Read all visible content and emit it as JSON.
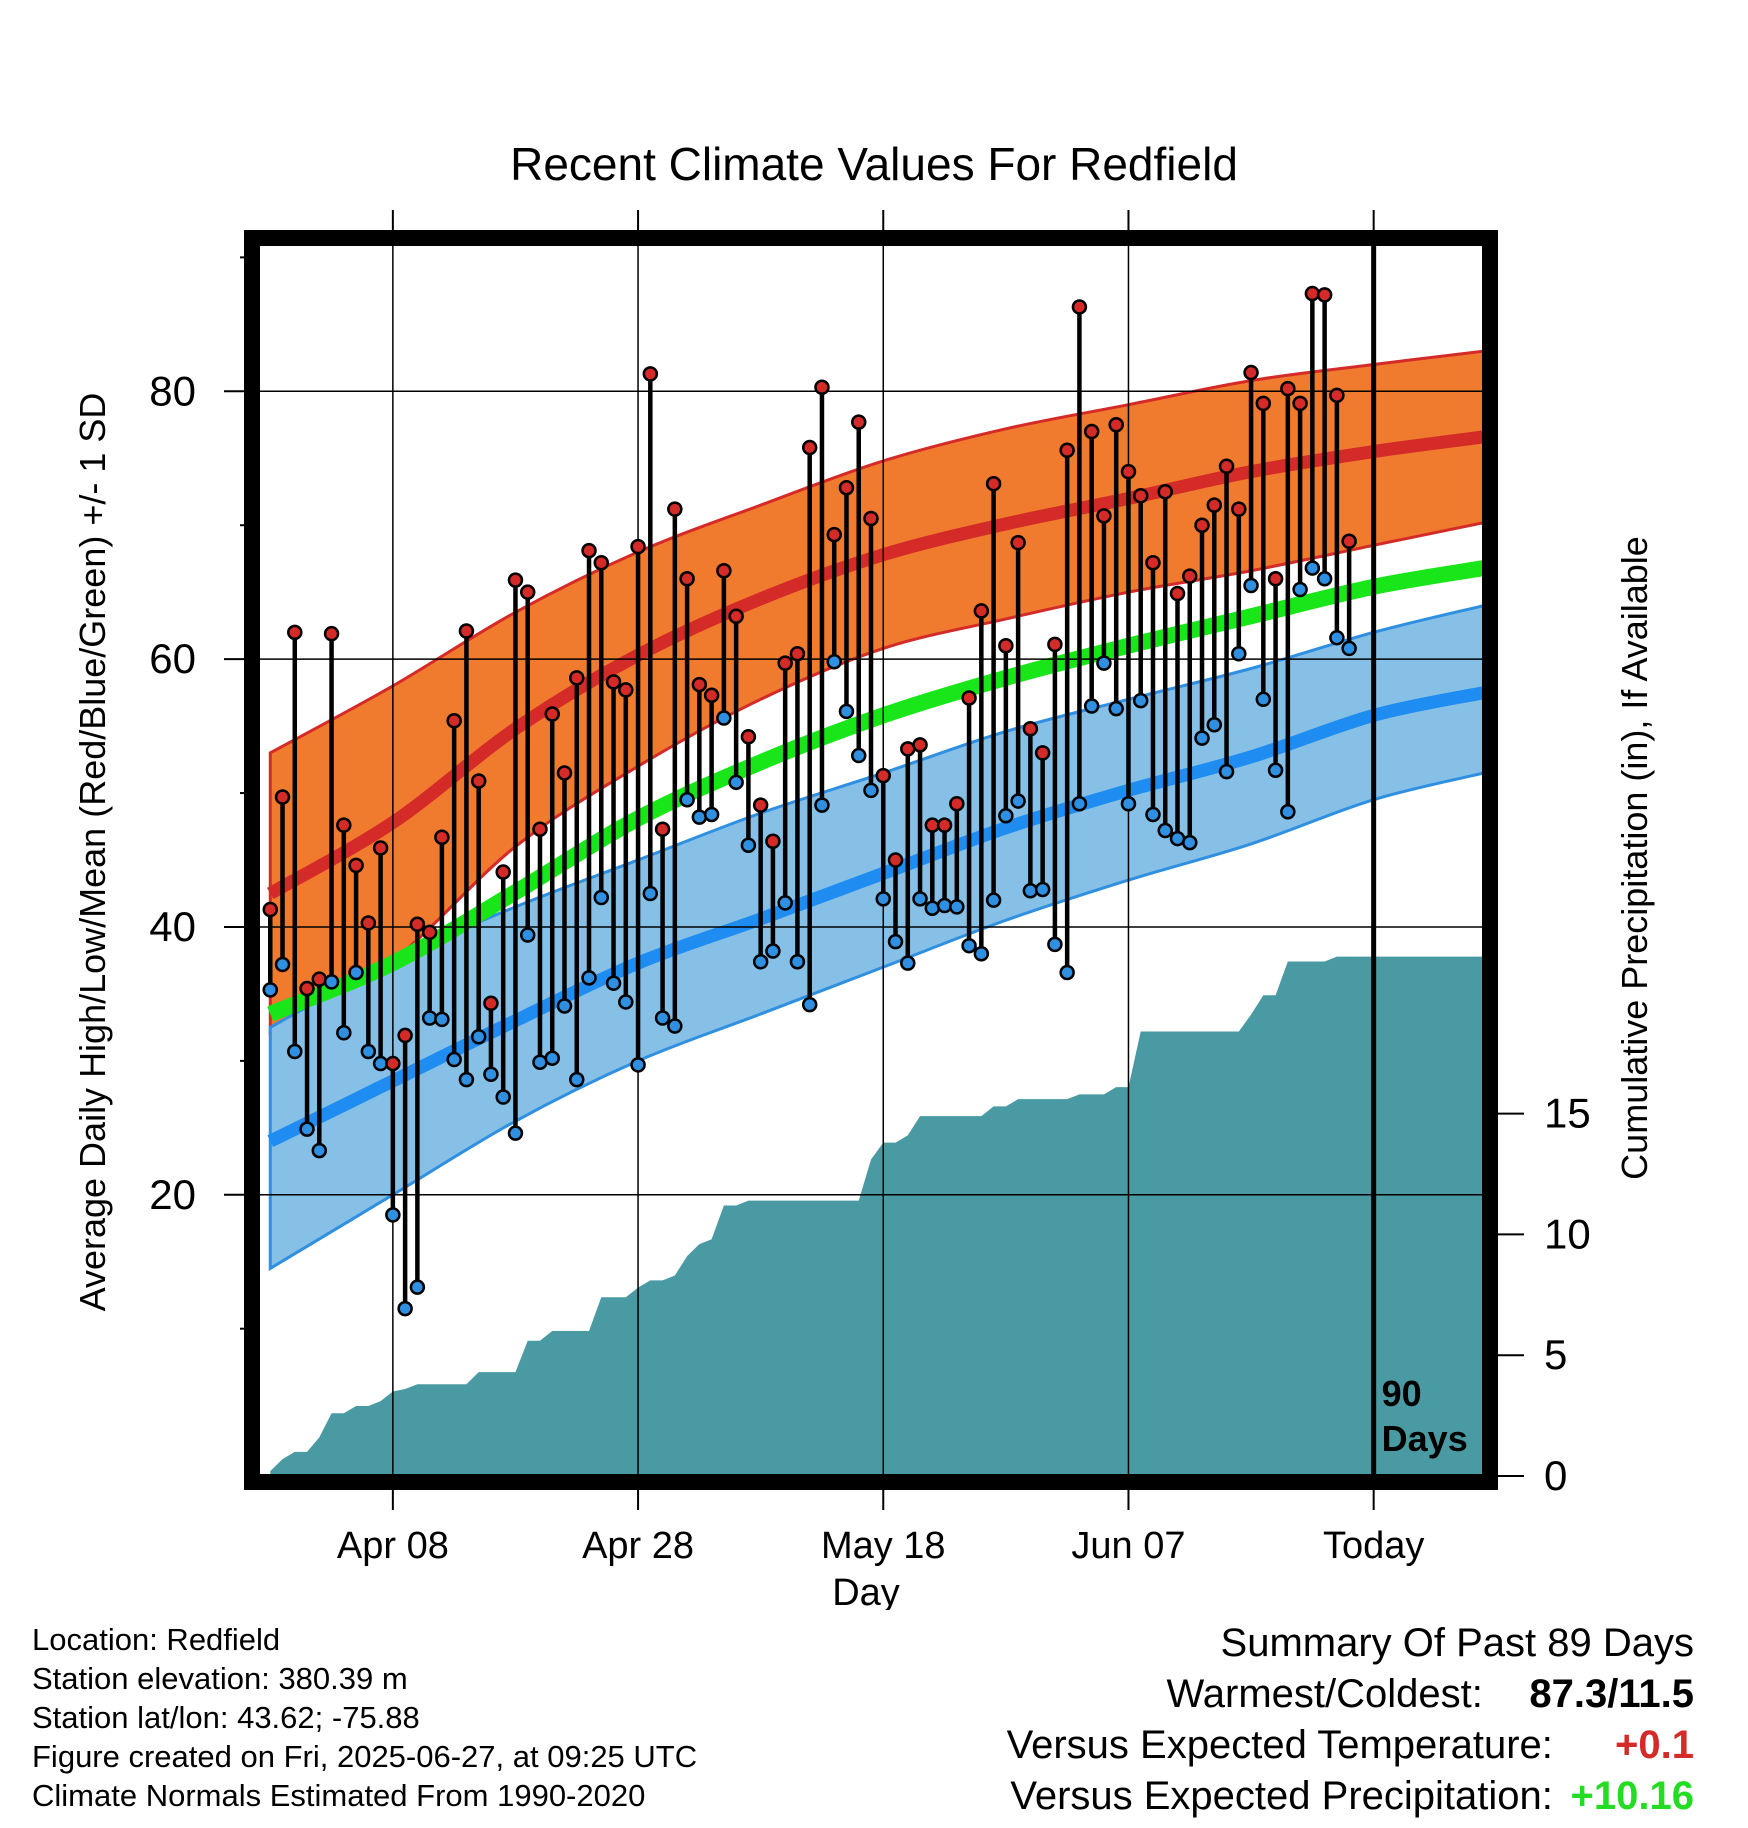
{
  "chart_data": {
    "type": "line",
    "title": "Recent Climate Values For Redfield",
    "xlabel": "Day",
    "ylabel": "Average Daily High/Low/Mean (Red/Blue/Green) +/- 1 SD",
    "y2label": "Cumulative Precipitation (in), If Available",
    "xlim": [
      -11,
      89
    ],
    "ylim": [
      -1,
      91
    ],
    "y2lim": [
      0,
      51
    ],
    "x_ticks": [
      {
        "day": 0,
        "label": "Apr 08"
      },
      {
        "day": 20,
        "label": "Apr 28"
      },
      {
        "day": 40,
        "label": "May 18"
      },
      {
        "day": 60,
        "label": "Jun 07"
      },
      {
        "day": 80,
        "label": "Today"
      }
    ],
    "y_ticks": [
      20,
      40,
      60,
      80
    ],
    "y2_ticks": [
      0,
      5,
      10,
      15
    ],
    "today_marker": {
      "day": 80,
      "label_line1": "90",
      "label_line2": "Days"
    },
    "grid": true,
    "normals": {
      "x": [
        -10,
        0,
        10,
        20,
        30,
        40,
        50,
        60,
        70,
        80,
        89
      ],
      "high_mean": [
        42.5,
        47.8,
        54.8,
        60.3,
        64.5,
        67.8,
        70.1,
        72.0,
        74.0,
        75.5,
        76.6
      ],
      "high_upper": [
        53.0,
        58.0,
        63.5,
        68.0,
        71.5,
        74.8,
        77.2,
        79.0,
        80.8,
        82.0,
        83.0
      ],
      "high_lower": [
        32.0,
        37.5,
        46.0,
        52.0,
        57.0,
        60.8,
        63.0,
        65.0,
        66.6,
        68.5,
        70.2
      ],
      "low_mean": [
        24.0,
        28.5,
        33.0,
        37.3,
        40.6,
        44.0,
        47.4,
        50.2,
        52.7,
        55.8,
        57.5
      ],
      "low_upper": [
        32.5,
        37.5,
        41.5,
        45.0,
        48.5,
        51.5,
        54.6,
        57.0,
        59.3,
        62.0,
        64.0
      ],
      "low_lower": [
        14.5,
        20.0,
        25.5,
        30.0,
        33.5,
        37.0,
        40.5,
        43.5,
        46.2,
        49.5,
        51.5
      ],
      "mean": [
        33.5,
        37.3,
        42.6,
        48.1,
        52.3,
        55.8,
        58.6,
        61.0,
        63.2,
        65.4,
        66.8
      ]
    },
    "series": [
      {
        "name": "High",
        "color": "#d42a28",
        "x": [
          -10,
          -9,
          -8,
          -7,
          -6,
          -5,
          -4,
          -3,
          -2,
          -1,
          0,
          1,
          2,
          3,
          4,
          5,
          6,
          7,
          8,
          9,
          10,
          11,
          12,
          13,
          14,
          15,
          16,
          17,
          18,
          19,
          20,
          21,
          22,
          23,
          24,
          25,
          26,
          27,
          28,
          29,
          30,
          31,
          32,
          33,
          34,
          35,
          36,
          37,
          38,
          39,
          40,
          41,
          42,
          43,
          44,
          45,
          46,
          47,
          48,
          49,
          50,
          51,
          52,
          53,
          54,
          55,
          56,
          57,
          58,
          59,
          60,
          61,
          62,
          63,
          64,
          65,
          66,
          67,
          68,
          69,
          70,
          71,
          72,
          73,
          74,
          75,
          76,
          77,
          78,
          79
        ],
        "values": [
          41.3,
          49.7,
          62.0,
          35.4,
          36.1,
          61.9,
          47.6,
          44.6,
          40.3,
          45.9,
          29.8,
          31.9,
          40.2,
          39.6,
          46.7,
          55.4,
          62.1,
          50.9,
          34.3,
          44.1,
          65.9,
          65.0,
          47.3,
          55.9,
          51.5,
          58.6,
          68.1,
          67.2,
          58.3,
          57.7,
          68.4,
          81.3,
          47.3,
          71.2,
          66.0,
          58.1,
          57.3,
          66.6,
          63.2,
          54.2,
          49.1,
          46.4,
          59.7,
          60.4,
          75.8,
          80.3,
          69.3,
          72.8,
          77.7,
          70.5,
          51.3,
          45.0,
          53.3,
          53.6,
          47.6,
          47.6,
          49.2,
          57.1,
          63.6,
          73.1,
          61.0,
          68.7,
          54.8,
          53.0,
          61.1,
          75.6,
          86.3,
          77.0,
          70.7,
          77.5,
          74.0,
          72.2,
          67.2,
          72.5,
          64.9,
          66.2,
          70.0,
          71.5,
          74.4,
          71.2,
          81.4,
          79.1,
          66.0,
          80.2,
          79.1,
          87.3,
          87.2,
          79.7,
          68.8,
          null
        ]
      },
      {
        "name": "Low",
        "color": "#2f8fe0",
        "x": [
          -10,
          -9,
          -8,
          -7,
          -6,
          -5,
          -4,
          -3,
          -2,
          -1,
          0,
          1,
          2,
          3,
          4,
          5,
          6,
          7,
          8,
          9,
          10,
          11,
          12,
          13,
          14,
          15,
          16,
          17,
          18,
          19,
          20,
          21,
          22,
          23,
          24,
          25,
          26,
          27,
          28,
          29,
          30,
          31,
          32,
          33,
          34,
          35,
          36,
          37,
          38,
          39,
          40,
          41,
          42,
          43,
          44,
          45,
          46,
          47,
          48,
          49,
          50,
          51,
          52,
          53,
          54,
          55,
          56,
          57,
          58,
          59,
          60,
          61,
          62,
          63,
          64,
          65,
          66,
          67,
          68,
          69,
          70,
          71,
          72,
          73,
          74,
          75,
          76,
          77,
          78,
          79
        ],
        "values": [
          35.3,
          37.2,
          30.7,
          24.9,
          23.3,
          35.9,
          32.1,
          36.6,
          30.7,
          29.8,
          18.5,
          11.5,
          13.1,
          33.2,
          33.1,
          30.1,
          28.6,
          31.8,
          29.0,
          27.3,
          24.6,
          39.4,
          29.9,
          30.2,
          34.1,
          28.6,
          36.2,
          42.2,
          35.8,
          34.4,
          29.7,
          42.5,
          33.2,
          32.6,
          49.5,
          48.2,
          48.4,
          55.6,
          50.8,
          46.1,
          37.4,
          38.2,
          41.8,
          37.4,
          34.2,
          49.1,
          59.8,
          56.1,
          52.8,
          50.2,
          42.1,
          38.9,
          37.3,
          42.1,
          41.4,
          41.6,
          41.5,
          38.6,
          38.0,
          42.0,
          48.3,
          49.4,
          42.7,
          42.8,
          38.7,
          36.6,
          49.2,
          56.5,
          59.7,
          56.3,
          49.2,
          56.9,
          48.4,
          47.2,
          46.6,
          46.3,
          54.1,
          55.1,
          51.6,
          60.4,
          65.5,
          57.0,
          51.7,
          48.6,
          65.2,
          66.8,
          66.0,
          61.6,
          60.8,
          null
        ]
      }
    ],
    "precipitation": {
      "x": [
        -10,
        -9,
        -8,
        -7,
        -6,
        -5,
        -4,
        -3,
        -2,
        -1,
        0,
        1,
        2,
        3,
        4,
        5,
        6,
        7,
        8,
        9,
        10,
        11,
        12,
        13,
        14,
        15,
        16,
        17,
        18,
        19,
        20,
        21,
        22,
        23,
        24,
        25,
        26,
        27,
        28,
        29,
        30,
        31,
        32,
        33,
        34,
        35,
        36,
        37,
        38,
        39,
        40,
        41,
        42,
        43,
        44,
        45,
        46,
        47,
        48,
        49,
        50,
        51,
        52,
        53,
        54,
        55,
        56,
        57,
        58,
        59,
        60,
        61,
        62,
        63,
        64,
        65,
        66,
        67,
        68,
        69,
        70,
        71,
        72,
        73,
        74,
        75,
        76,
        77,
        78,
        79,
        80,
        89
      ],
      "values": [
        0.2,
        0.7,
        1.0,
        1.0,
        1.6,
        2.6,
        2.6,
        2.9,
        2.9,
        3.1,
        3.5,
        3.6,
        3.8,
        3.8,
        3.8,
        3.8,
        3.8,
        4.3,
        4.3,
        4.3,
        4.3,
        5.6,
        5.6,
        6.0,
        6.0,
        6.0,
        6.0,
        7.4,
        7.4,
        7.4,
        7.8,
        8.1,
        8.1,
        8.3,
        9.1,
        9.6,
        9.8,
        11.2,
        11.2,
        11.4,
        11.4,
        11.4,
        11.4,
        11.4,
        11.4,
        11.4,
        11.4,
        11.4,
        11.4,
        13.1,
        13.8,
        13.8,
        14.1,
        14.9,
        14.9,
        14.9,
        14.9,
        14.9,
        14.9,
        15.3,
        15.3,
        15.6,
        15.6,
        15.6,
        15.6,
        15.6,
        15.8,
        15.8,
        15.8,
        16.1,
        16.1,
        18.4,
        18.4,
        18.4,
        18.4,
        18.4,
        18.4,
        18.4,
        18.4,
        18.4,
        19.1,
        19.9,
        19.9,
        21.3,
        21.3,
        21.3,
        21.3,
        21.5,
        21.5,
        21.5,
        21.5,
        21.5
      ]
    },
    "colors": {
      "high_band": "#f07a2e",
      "high_band_edge": "#d42a28",
      "high_mean": "#d42a28",
      "mean": "#19e619",
      "low_band": "#86c0e6",
      "low_band_edge": "#2f8fe0",
      "low_mean": "#1e8cf0",
      "precip": "#4a9aa3",
      "high_dot": "#d42a28",
      "low_dot": "#2f8fe0"
    }
  },
  "metadata": {
    "location": "Location: Redfield",
    "elevation": "Station elevation: 380.39 m",
    "latlon": "Station lat/lon: 43.62; -75.88",
    "created": "Figure created on Fri, 2025-06-27, at 09:25 UTC",
    "normals": "Climate Normals Estimated From 1990-2020"
  },
  "summary": {
    "title": "Summary Of Past 89 Days",
    "warmest_label": "Warmest/Coldest:",
    "warmest_value": "87.3/11.5",
    "temp_label": "Versus Expected Temperature:",
    "temp_value": "+0.1",
    "temp_color": "#d42a28",
    "precip_label": "Versus Expected Precipitation:",
    "precip_value": "+10.16",
    "precip_color": "#22dd22"
  }
}
